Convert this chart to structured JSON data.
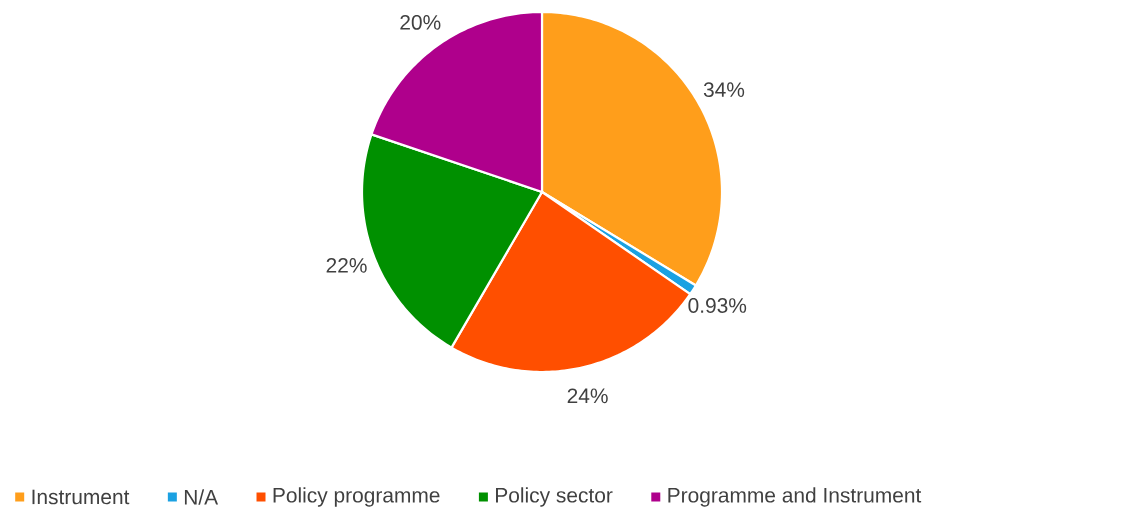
{
  "chart_data": {
    "type": "pie",
    "categories": [
      "Instrument",
      "N/A",
      "Policy programme",
      "Policy sector",
      "Programme and Instrument"
    ],
    "values": [
      34,
      0.93,
      24,
      22,
      20
    ],
    "colors": [
      "#ff9e1b",
      "#1ba1e2",
      "#ff4f00",
      "#009000",
      "#af008c"
    ],
    "value_labels": [
      "34%",
      "0.93%",
      "24%",
      "22%",
      "20%"
    ],
    "legend": "bottom"
  }
}
